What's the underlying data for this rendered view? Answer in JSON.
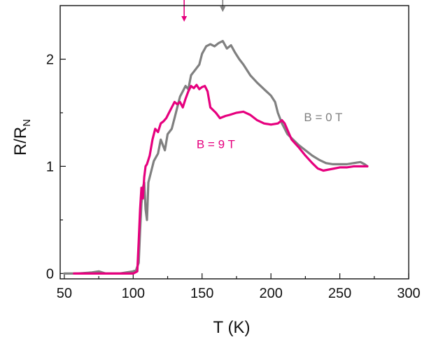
{
  "chart_data": {
    "type": "line",
    "title": "",
    "xlabel": "T (K)",
    "ylabel": {
      "main": "R/R",
      "subscript": "N"
    },
    "xlim": [
      47,
      300
    ],
    "ylim": [
      -0.05,
      2.5
    ],
    "x_ticks": [
      50,
      100,
      150,
      200,
      250,
      300
    ],
    "y_ticks": [
      0,
      1,
      2
    ],
    "grid": false,
    "legend": "none",
    "series": [
      {
        "name": "B = 0 T",
        "color": "#808080",
        "label_at": {
          "x": 224,
          "y": 1.42
        },
        "points": [
          [
            50,
            0
          ],
          [
            60,
            0
          ],
          [
            70,
            0.01
          ],
          [
            75,
            0.02
          ],
          [
            80,
            0
          ],
          [
            90,
            0
          ],
          [
            95,
            0.01
          ],
          [
            100,
            0.02
          ],
          [
            102,
            0.03
          ],
          [
            104,
            0.1
          ],
          [
            105,
            0.4
          ],
          [
            106,
            0.65
          ],
          [
            107,
            0.8
          ],
          [
            108,
            0.85
          ],
          [
            109,
            0.6
          ],
          [
            110,
            0.5
          ],
          [
            111,
            0.85
          ],
          [
            113,
            0.95
          ],
          [
            115,
            1.05
          ],
          [
            118,
            1.12
          ],
          [
            120,
            1.25
          ],
          [
            123,
            1.15
          ],
          [
            125,
            1.3
          ],
          [
            128,
            1.35
          ],
          [
            130,
            1.45
          ],
          [
            132,
            1.55
          ],
          [
            134,
            1.65
          ],
          [
            136,
            1.7
          ],
          [
            138,
            1.75
          ],
          [
            140,
            1.72
          ],
          [
            142,
            1.85
          ],
          [
            145,
            1.9
          ],
          [
            148,
            1.95
          ],
          [
            150,
            2.05
          ],
          [
            153,
            2.12
          ],
          [
            156,
            2.14
          ],
          [
            159,
            2.12
          ],
          [
            162,
            2.15
          ],
          [
            165,
            2.17
          ],
          [
            168,
            2.1
          ],
          [
            171,
            2.13
          ],
          [
            174,
            2.06
          ],
          [
            177,
            2.0
          ],
          [
            180,
            1.95
          ],
          [
            185,
            1.85
          ],
          [
            190,
            1.78
          ],
          [
            195,
            1.72
          ],
          [
            200,
            1.66
          ],
          [
            203,
            1.6
          ],
          [
            205,
            1.5
          ],
          [
            208,
            1.4
          ],
          [
            212,
            1.3
          ],
          [
            216,
            1.25
          ],
          [
            220,
            1.2
          ],
          [
            225,
            1.15
          ],
          [
            230,
            1.1
          ],
          [
            235,
            1.06
          ],
          [
            240,
            1.03
          ],
          [
            245,
            1.02
          ],
          [
            250,
            1.02
          ],
          [
            255,
            1.02
          ],
          [
            260,
            1.03
          ],
          [
            265,
            1.04
          ],
          [
            268,
            1.02
          ],
          [
            270,
            1.0
          ]
        ]
      },
      {
        "name": "B = 9 T",
        "color": "#e6007e",
        "label_at": {
          "x": 146,
          "y": 1.17
        },
        "points": [
          [
            57,
            0
          ],
          [
            70,
            0
          ],
          [
            80,
            0
          ],
          [
            90,
            0
          ],
          [
            100,
            0
          ],
          [
            103,
            0.02
          ],
          [
            104,
            0.3
          ],
          [
            105,
            0.6
          ],
          [
            106,
            0.8
          ],
          [
            107,
            0.7
          ],
          [
            108,
            0.9
          ],
          [
            109,
            1.0
          ],
          [
            110,
            1.02
          ],
          [
            112,
            1.1
          ],
          [
            114,
            1.25
          ],
          [
            116,
            1.35
          ],
          [
            118,
            1.32
          ],
          [
            120,
            1.4
          ],
          [
            122,
            1.42
          ],
          [
            124,
            1.45
          ],
          [
            126,
            1.5
          ],
          [
            128,
            1.55
          ],
          [
            130,
            1.6
          ],
          [
            132,
            1.58
          ],
          [
            134,
            1.6
          ],
          [
            136,
            1.55
          ],
          [
            138,
            1.63
          ],
          [
            140,
            1.7
          ],
          [
            142,
            1.75
          ],
          [
            144,
            1.73
          ],
          [
            146,
            1.76
          ],
          [
            148,
            1.72
          ],
          [
            150,
            1.74
          ],
          [
            152,
            1.75
          ],
          [
            154,
            1.7
          ],
          [
            156,
            1.55
          ],
          [
            160,
            1.5
          ],
          [
            163,
            1.45
          ],
          [
            167,
            1.47
          ],
          [
            170,
            1.48
          ],
          [
            175,
            1.5
          ],
          [
            180,
            1.51
          ],
          [
            185,
            1.48
          ],
          [
            190,
            1.43
          ],
          [
            195,
            1.4
          ],
          [
            200,
            1.39
          ],
          [
            205,
            1.4
          ],
          [
            208,
            1.43
          ],
          [
            210,
            1.4
          ],
          [
            215,
            1.25
          ],
          [
            220,
            1.18
          ],
          [
            225,
            1.1
          ],
          [
            230,
            1.03
          ],
          [
            234,
            0.98
          ],
          [
            238,
            0.96
          ],
          [
            242,
            0.97
          ],
          [
            246,
            0.98
          ],
          [
            250,
            0.99
          ],
          [
            255,
            0.99
          ],
          [
            260,
            1.0
          ],
          [
            265,
            1.0
          ],
          [
            270,
            1.0
          ]
        ]
      }
    ],
    "annotations": [
      {
        "type": "arrow",
        "x": 137,
        "y_top": 2.64,
        "y_bottom": 2.35,
        "color": "#e6007e"
      },
      {
        "type": "arrow",
        "x": 165,
        "y_top": 2.72,
        "y_bottom": 2.44,
        "color": "#808080"
      }
    ]
  }
}
